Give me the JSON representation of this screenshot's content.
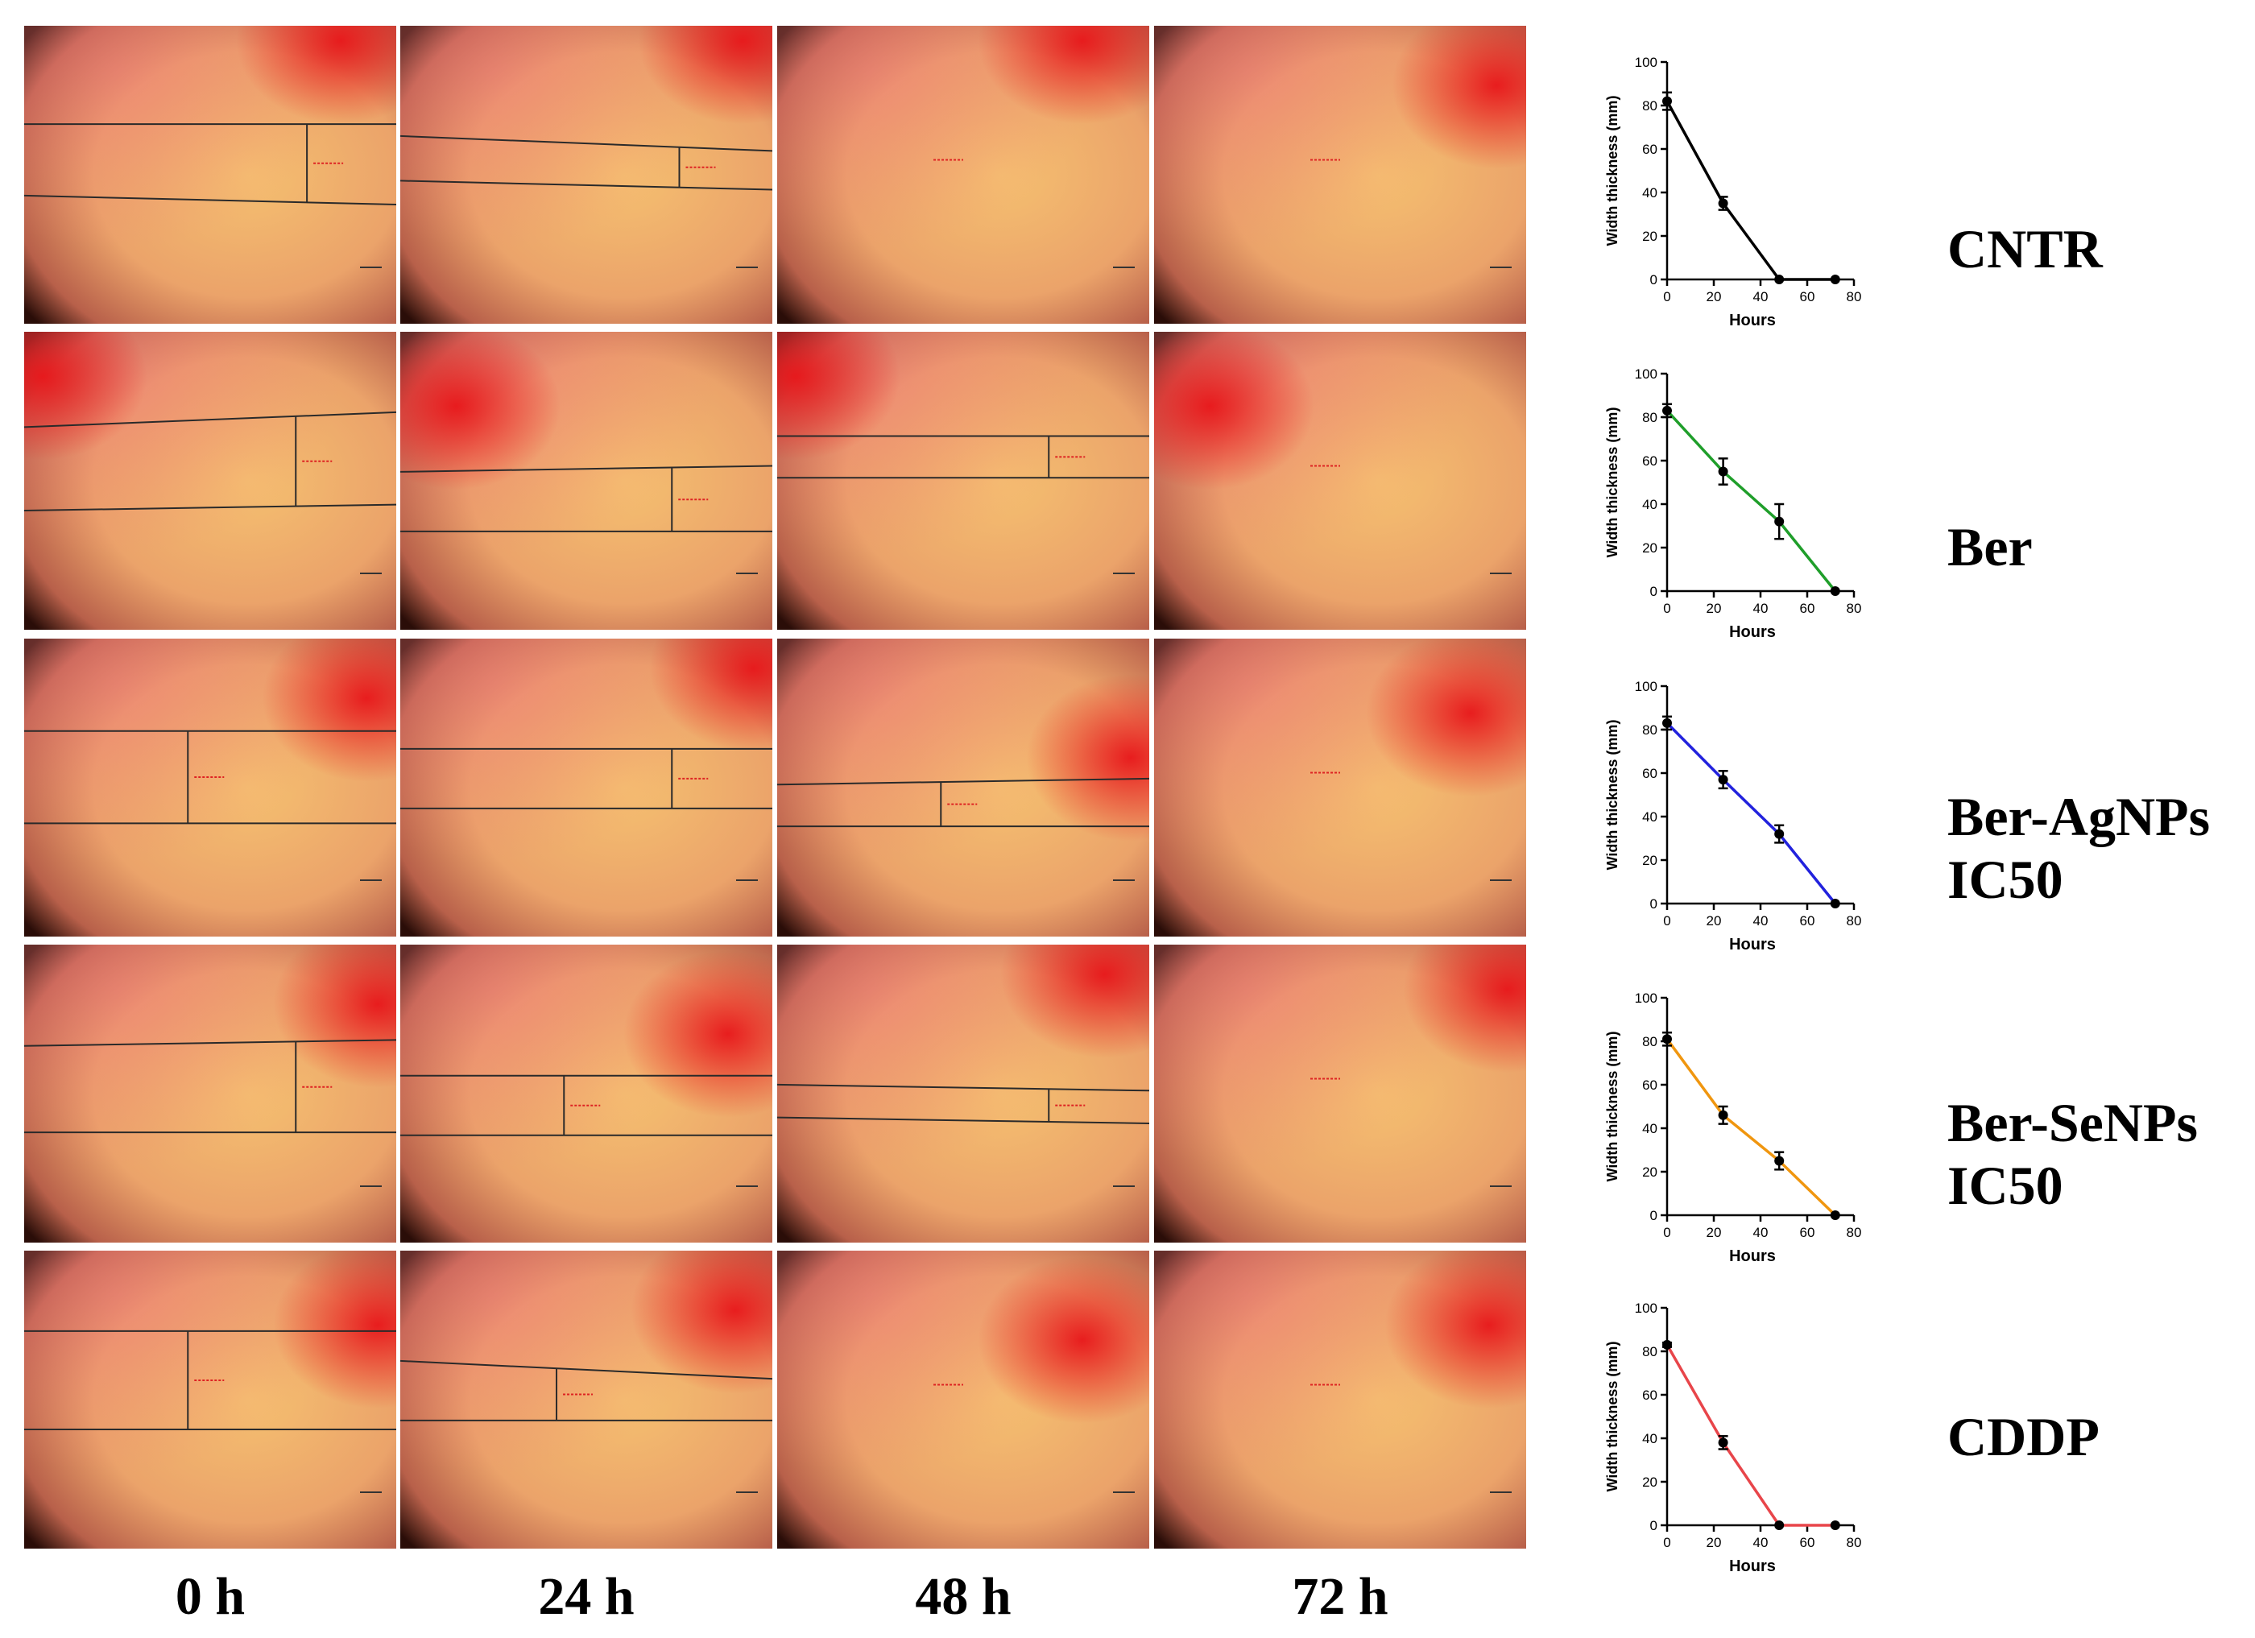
{
  "time_labels": [
    "0 h",
    "24 h",
    "48 h",
    "72 h"
  ],
  "groups": [
    {
      "label_lines": [
        "CNTR"
      ],
      "color": "#000000"
    },
    {
      "label_lines": [
        "Ber"
      ],
      "color": "#1f9e2a"
    },
    {
      "label_lines": [
        "Ber-AgNPs",
        "IC50"
      ],
      "color": "#2222dd"
    },
    {
      "label_lines": [
        "Ber-SeNPs",
        "IC50"
      ],
      "color": "#f0960f"
    },
    {
      "label_lines": [
        "CDDP"
      ],
      "color": "#e8454a"
    }
  ],
  "chart_data": [
    {
      "type": "line",
      "group": "CNTR",
      "x": [
        0,
        24,
        48,
        72
      ],
      "y": [
        82,
        35,
        0,
        0
      ],
      "err": [
        4,
        3,
        0,
        0
      ],
      "xlabel": "Hours",
      "ylabel": "Width thickness (mm)",
      "xlim": [
        0,
        80
      ],
      "ylim": [
        0,
        100
      ],
      "xticks": [
        0,
        20,
        40,
        60,
        80
      ],
      "yticks": [
        0,
        20,
        40,
        60,
        80,
        100
      ],
      "color": "#000000"
    },
    {
      "type": "line",
      "group": "Ber",
      "x": [
        0,
        24,
        48,
        72
      ],
      "y": [
        83,
        55,
        32,
        0
      ],
      "err": [
        3,
        6,
        8,
        0
      ],
      "xlabel": "Hours",
      "ylabel": "Width thickness (mm)",
      "xlim": [
        0,
        80
      ],
      "ylim": [
        0,
        100
      ],
      "xticks": [
        0,
        20,
        40,
        60,
        80
      ],
      "yticks": [
        0,
        20,
        40,
        60,
        80,
        100
      ],
      "color": "#1f9e2a"
    },
    {
      "type": "line",
      "group": "Ber-AgNPs IC50",
      "x": [
        0,
        24,
        48,
        72
      ],
      "y": [
        83,
        57,
        32,
        0
      ],
      "err": [
        3,
        4,
        4,
        0
      ],
      "xlabel": "Hours",
      "ylabel": "Width thickness (mm)",
      "xlim": [
        0,
        80
      ],
      "ylim": [
        0,
        100
      ],
      "xticks": [
        0,
        20,
        40,
        60,
        80
      ],
      "yticks": [
        0,
        20,
        40,
        60,
        80,
        100
      ],
      "color": "#2222dd"
    },
    {
      "type": "line",
      "group": "Ber-SeNPs IC50",
      "x": [
        0,
        24,
        48,
        72
      ],
      "y": [
        81,
        46,
        25,
        0
      ],
      "err": [
        3,
        4,
        4,
        0
      ],
      "xlabel": "Hours",
      "ylabel": "Width thickness (mm)",
      "xlim": [
        0,
        80
      ],
      "ylim": [
        0,
        100
      ],
      "xticks": [
        0,
        20,
        40,
        60,
        80
      ],
      "yticks": [
        0,
        20,
        40,
        60,
        80,
        100
      ],
      "color": "#f0960f"
    },
    {
      "type": "line",
      "group": "CDDP",
      "x": [
        0,
        24,
        48,
        72
      ],
      "y": [
        83,
        38,
        0,
        0
      ],
      "err": [
        1,
        3,
        0,
        0
      ],
      "xlabel": "Hours",
      "ylabel": "Width thickness (mm)",
      "xlim": [
        0,
        80
      ],
      "ylim": [
        0,
        100
      ],
      "xticks": [
        0,
        20,
        40,
        60,
        80
      ],
      "yticks": [
        0,
        20,
        40,
        60,
        80,
        100
      ],
      "color": "#e8454a"
    }
  ]
}
